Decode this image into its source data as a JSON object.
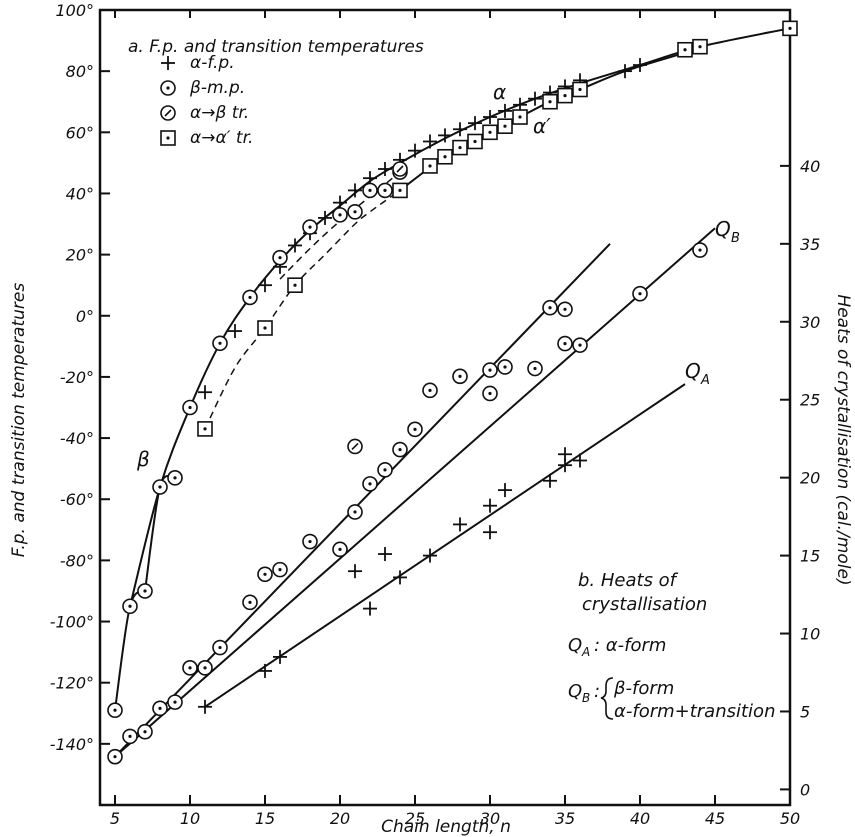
{
  "chart_data": {
    "type": "scatter",
    "xlabel": "Chain length, n",
    "ylabel_left": "F.p. and transition temperatures",
    "ylabel_right": "Heats of crystallisation (cal./mole)",
    "xlim": [
      4,
      50
    ],
    "ylim_left": [
      -160,
      100
    ],
    "ylim_right": [
      -1,
      50
    ],
    "x_ticks": [
      "5",
      "10",
      "15",
      "20",
      "25",
      "30",
      "35",
      "40",
      "45",
      "50"
    ],
    "y_ticks_left": [
      "-140°",
      "-120°",
      "-100°",
      "-80°",
      "-60°",
      "-40°",
      "-20°",
      "0°",
      "20°",
      "40°",
      "60°",
      "80°",
      "100°"
    ],
    "y_ticks_right": [
      "0",
      "5",
      "10",
      "15",
      "20",
      "25",
      "30",
      "35",
      "40"
    ],
    "panel_a": {
      "title": "a. F.p. and transition temperatures",
      "legend": [
        {
          "marker": "plus",
          "label": "α-f.p."
        },
        {
          "marker": "dotcircle",
          "label": "β-m.p."
        },
        {
          "marker": "slashcircle",
          "label": "α→β tr."
        },
        {
          "marker": "dotsquare",
          "label": "α→α′ tr."
        }
      ],
      "curve_labels": {
        "alpha": "α",
        "alpha_prime": "α′",
        "beta": "β"
      },
      "series": [
        {
          "name": "α-f.p.",
          "marker": "plus",
          "points": [
            [
              11,
              -25
            ],
            [
              13,
              -5
            ],
            [
              15,
              10
            ],
            [
              16,
              16
            ],
            [
              17,
              23
            ],
            [
              18,
              27
            ],
            [
              19,
              32
            ],
            [
              20,
              37
            ],
            [
              21,
              41
            ],
            [
              22,
              45
            ],
            [
              23,
              48
            ],
            [
              24,
              51
            ],
            [
              25,
              54
            ],
            [
              26,
              57
            ],
            [
              27,
              59
            ],
            [
              28,
              61
            ],
            [
              29,
              63
            ],
            [
              30,
              65
            ],
            [
              31,
              67
            ],
            [
              32,
              69
            ],
            [
              33,
              71
            ],
            [
              34,
              73
            ],
            [
              35,
              75
            ],
            [
              36,
              77
            ],
            [
              39,
              80
            ],
            [
              40,
              82
            ]
          ]
        },
        {
          "name": "β-m.p.",
          "marker": "dotcircle",
          "points": [
            [
              5,
              -129
            ],
            [
              6,
              -95
            ],
            [
              7,
              -90
            ],
            [
              8,
              -56
            ],
            [
              9,
              -53
            ],
            [
              10,
              -30
            ],
            [
              12,
              -9
            ],
            [
              14,
              6
            ],
            [
              16,
              19
            ],
            [
              18,
              29
            ],
            [
              20,
              33
            ],
            [
              21,
              34
            ],
            [
              22,
              41
            ],
            [
              23,
              41
            ],
            [
              24,
              47
            ]
          ]
        },
        {
          "name": "α→β tr.",
          "marker": "slashcircle",
          "points": [
            [
              24,
              48
            ]
          ]
        },
        {
          "name": "α→α′ tr.",
          "marker": "dotsquare",
          "points": [
            [
              11,
              -37
            ],
            [
              15,
              -4
            ],
            [
              17,
              10
            ],
            [
              24,
              41
            ],
            [
              26,
              49
            ],
            [
              27,
              52
            ],
            [
              28,
              55
            ],
            [
              29,
              57
            ],
            [
              30,
              60
            ],
            [
              31,
              62
            ],
            [
              32,
              65
            ],
            [
              34,
              70
            ],
            [
              35,
              72
            ],
            [
              36,
              74
            ],
            [
              43,
              87
            ],
            [
              44,
              88
            ],
            [
              50,
              94
            ]
          ]
        }
      ]
    },
    "panel_b": {
      "title_line1": "b. Heats of",
      "title_line2": "crystallisation",
      "line_labels": {
        "QB": "Q",
        "QB_sub": "B",
        "QA": "Q",
        "QA_sub": "A"
      },
      "key": {
        "qa_label": "Q",
        "qa_sub": "A",
        "qa_text": ": α-form",
        "qb_label": "Q",
        "qb_sub": "B",
        "qb_text1": "β-form",
        "qb_text2": "α-form+transition"
      },
      "series": [
        {
          "name": "α-form",
          "marker": "plus",
          "points": [
            [
              11,
              5.3
            ],
            [
              15,
              7.6
            ],
            [
              16,
              8.5
            ],
            [
              21,
              14.0
            ],
            [
              22,
              11.6
            ],
            [
              23,
              15.1
            ],
            [
              24,
              13.6
            ],
            [
              26,
              15.0
            ],
            [
              28,
              17.0
            ],
            [
              30,
              18.2
            ],
            [
              30,
              16.5
            ],
            [
              31,
              19.2
            ],
            [
              34,
              19.8
            ],
            [
              35,
              21.5
            ],
            [
              35,
              20.8
            ],
            [
              36,
              21.1
            ]
          ]
        },
        {
          "name": "β-form",
          "marker": "dotcircle",
          "points": [
            [
              5,
              2.1
            ],
            [
              6,
              3.4
            ],
            [
              7,
              3.7
            ],
            [
              8,
              5.2
            ],
            [
              9,
              5.6
            ],
            [
              10,
              7.8
            ],
            [
              11,
              7.8
            ],
            [
              12,
              9.1
            ],
            [
              14,
              12.0
            ],
            [
              15,
              13.8
            ],
            [
              16,
              14.1
            ],
            [
              18,
              15.9
            ],
            [
              20,
              15.4
            ],
            [
              21,
              17.8
            ],
            [
              22,
              19.6
            ],
            [
              23,
              20.5
            ],
            [
              24,
              21.8
            ],
            [
              25,
              23.1
            ],
            [
              26,
              25.6
            ],
            [
              28,
              26.5
            ],
            [
              30,
              26.9
            ],
            [
              30,
              25.4
            ],
            [
              31,
              27.1
            ],
            [
              33,
              27.0
            ],
            [
              34,
              30.9
            ],
            [
              35,
              30.8
            ],
            [
              35,
              28.6
            ],
            [
              36,
              28.5
            ],
            [
              40,
              31.8
            ],
            [
              44,
              34.6
            ]
          ]
        },
        {
          "name": "α-form+transition",
          "marker": "slashcircle",
          "points": [
            [
              21,
              22.0
            ]
          ]
        }
      ]
    },
    "lines": [
      {
        "name": "Q_A",
        "from": [
          11,
          5.3
        ],
        "to": [
          43,
          26
        ]
      },
      {
        "name": "Q_B",
        "from": [
          5,
          2.1
        ],
        "to": [
          45,
          36
        ]
      },
      {
        "name": "steep",
        "from": [
          5,
          2.1
        ],
        "to": [
          38,
          35
        ]
      }
    ]
  }
}
